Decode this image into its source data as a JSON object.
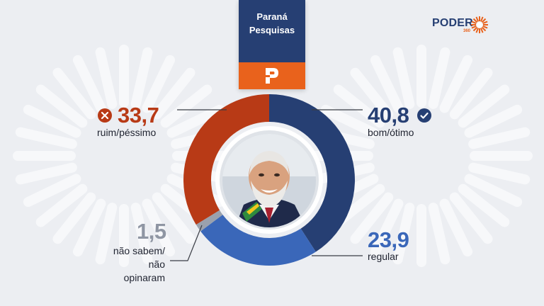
{
  "pollster": {
    "name": "Paraná\nPesquisas",
    "logo": "parana-pesquisas-p-logo",
    "bg_color": "#263f73",
    "logo_bg_color": "#e9621c"
  },
  "brand": {
    "name": "PODER",
    "sub": "360",
    "icon": "sun-burst-logo",
    "color": "#263f73",
    "accent": "#e9621c"
  },
  "chart_data": {
    "type": "pie",
    "donut": true,
    "start_angle_deg": 0,
    "slices": [
      {
        "label": "bom/ótimo",
        "value": 40.8,
        "display": "40,8",
        "color": "#263f73",
        "icon": "check-circle-icon"
      },
      {
        "label": "regular",
        "value": 23.9,
        "display": "23,9",
        "color": "#3a67b9",
        "icon": ""
      },
      {
        "label": "não sabem/\nnão opinaram",
        "value": 1.5,
        "display": "1,5",
        "color": "#9aa1ad",
        "icon": ""
      },
      {
        "label": "ruim/péssimo",
        "value": 33.7,
        "display": "33,7",
        "color": "#b83a16",
        "icon": "x-circle-icon"
      }
    ],
    "center_image": "portrait-photo"
  }
}
